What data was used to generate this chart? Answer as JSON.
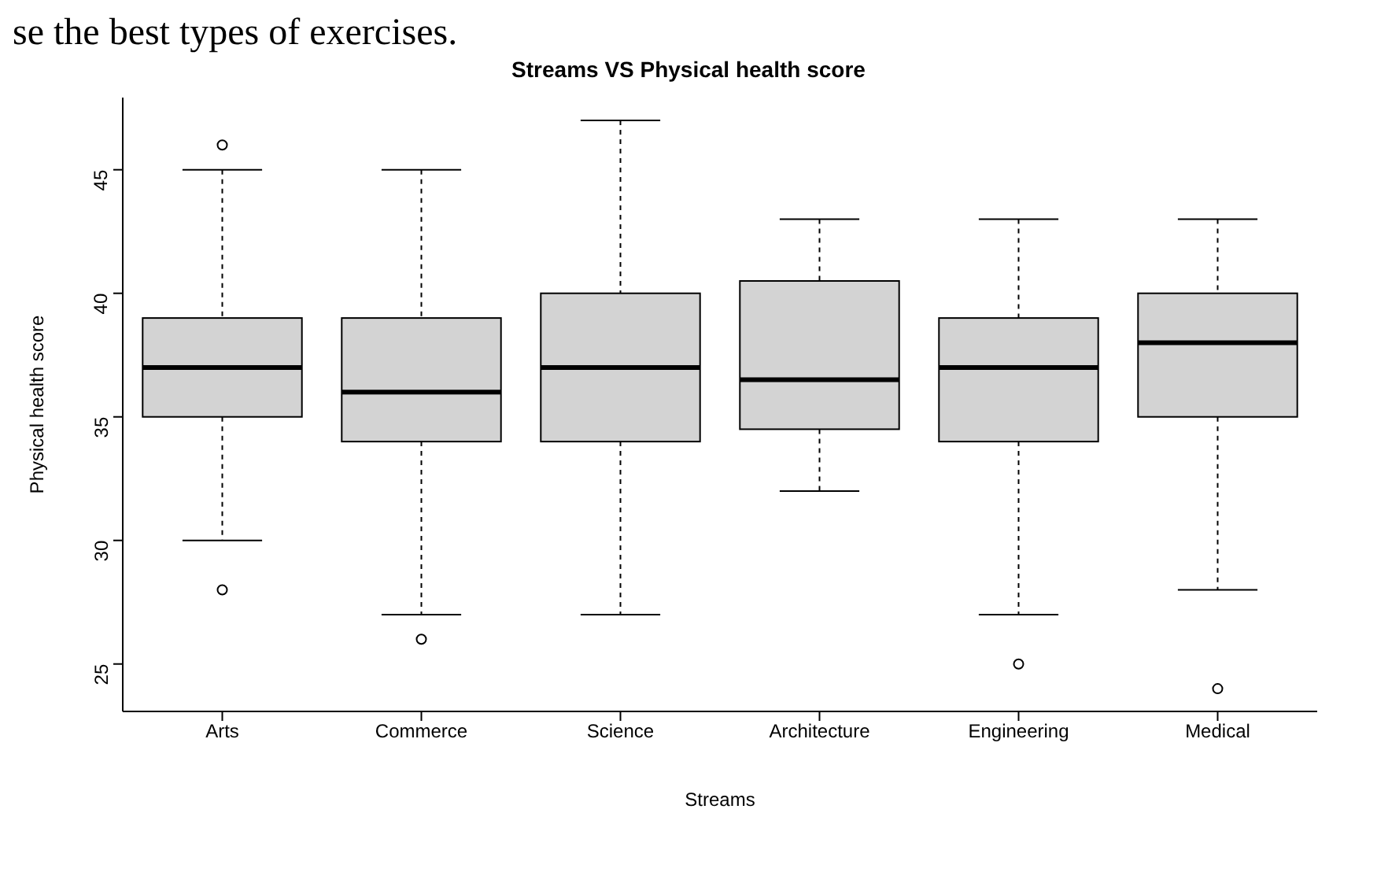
{
  "chart_data": {
    "type": "box",
    "title": "Streams VS Physical health score",
    "xlabel": "Streams",
    "ylabel": "Physical health score",
    "annotations": [
      "se the best types of exercises."
    ],
    "categories": [
      "Arts",
      "Commerce",
      "Science",
      "Architecture",
      "Engineering",
      "Medical"
    ],
    "color": "#d3d3d3",
    "ylim": [
      23.08,
      47.92
    ],
    "yticks": [
      25,
      30,
      35,
      40,
      45
    ],
    "boxes": [
      {
        "low": 30,
        "q1": 35,
        "median": 37,
        "q3": 39,
        "high": 45,
        "outliers": [
          46,
          28
        ]
      },
      {
        "low": 27,
        "q1": 34,
        "median": 36,
        "q3": 39,
        "high": 45,
        "outliers": [
          26
        ]
      },
      {
        "low": 27,
        "q1": 34,
        "median": 37,
        "q3": 40,
        "high": 47
      },
      {
        "low": 32,
        "q1": 34.5,
        "median": 36.5,
        "q3": 40.5,
        "high": 43
      },
      {
        "low": 27,
        "q1": 34,
        "median": 37,
        "q3": 39,
        "high": 43,
        "outliers": [
          25
        ]
      },
      {
        "low": 28,
        "q1": 35,
        "median": 38,
        "q3": 40,
        "high": 43,
        "outliers": [
          24
        ]
      }
    ]
  }
}
